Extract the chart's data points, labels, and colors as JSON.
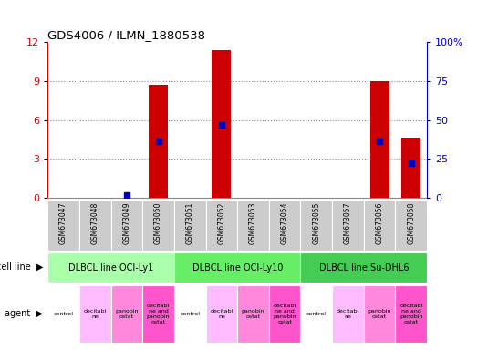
{
  "title": "GDS4006 / ILMN_1880538",
  "samples": [
    "GSM673047",
    "GSM673048",
    "GSM673049",
    "GSM673050",
    "GSM673051",
    "GSM673052",
    "GSM673053",
    "GSM673054",
    "GSM673055",
    "GSM673057",
    "GSM673056",
    "GSM673058"
  ],
  "count_values": [
    0,
    0,
    0,
    8.7,
    0,
    11.4,
    0,
    0,
    0,
    0,
    9.0,
    4.6
  ],
  "percentile_values": [
    0,
    0,
    2,
    36,
    0,
    47,
    0,
    0,
    0,
    0,
    36,
    22
  ],
  "ylim_left": [
    0,
    12
  ],
  "ylim_right": [
    0,
    100
  ],
  "yticks_left": [
    0,
    3,
    6,
    9,
    12
  ],
  "yticks_right": [
    0,
    25,
    50,
    75,
    100
  ],
  "cell_line_groups": [
    {
      "label": "DLBCL line OCI-Ly1",
      "start": 0,
      "end": 4,
      "color": "#aaffaa"
    },
    {
      "label": "DLBCL line OCI-Ly10",
      "start": 4,
      "end": 8,
      "color": "#66ee66"
    },
    {
      "label": "DLBCL line Su-DHL6",
      "start": 8,
      "end": 12,
      "color": "#44cc55"
    }
  ],
  "agent_labels": [
    "control",
    "decitabi\nne",
    "panobin\nostat",
    "decitabi\nne and\npanobin\nostat",
    "control",
    "decitabi\nne",
    "panobin\nostat",
    "decitabi\nne and\npanobin\nostat",
    "control",
    "decitabi\nne",
    "panobin\nostat",
    "decitabi\nne and\npanobin\nostat"
  ],
  "agent_cycle": [
    0,
    1,
    2,
    3,
    0,
    1,
    2,
    3,
    0,
    1,
    2,
    3
  ],
  "agent_colors": [
    "#ffffff",
    "#ffbbff",
    "#ff88dd",
    "#ff55cc"
  ],
  "bar_color": "#cc0000",
  "percentile_color": "#0000bb",
  "gridline_color": "#888888",
  "tick_color_left": "#cc0000",
  "tick_color_right": "#0000cc",
  "sample_bg": "#cccccc",
  "bar_width": 0.6
}
